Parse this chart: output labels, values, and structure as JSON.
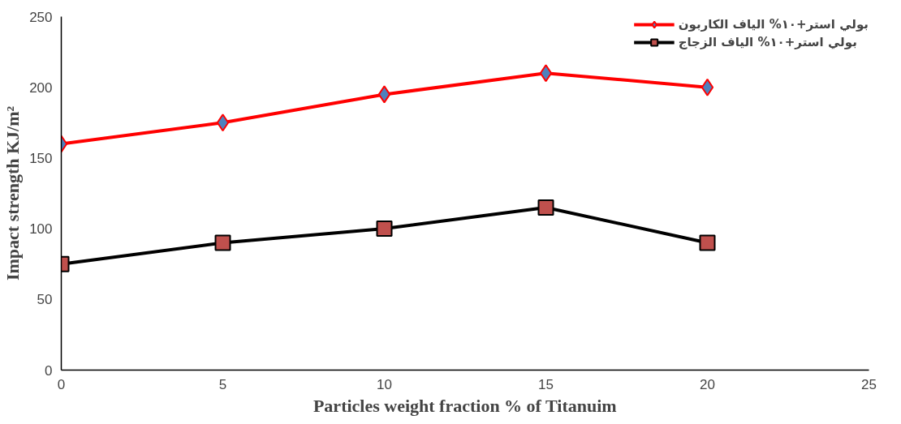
{
  "chart_data": {
    "type": "line",
    "xlabel": "Particles weight fraction % of Titanuim",
    "ylabel": "Impact strength KJ/m²",
    "x": [
      0,
      5,
      10,
      15,
      20
    ],
    "series": [
      {
        "name": "بولي استر+١٠% الياف الكاربون",
        "color": "#ff0000",
        "colors": [
          "#4f81bd",
          "#4f81bd",
          "#4f81bd",
          "#4f81bd",
          "#4f81bd"
        ],
        "marker": "diamond",
        "values": [
          160,
          175,
          195,
          210,
          200
        ]
      },
      {
        "name": "بولي استر+١٠% الياف الزجاج",
        "color": "#000000",
        "colors": [
          "#c0504d",
          "#c0504d",
          "#c0504d",
          "#c0504d",
          "#c0504d"
        ],
        "marker": "square",
        "values": [
          75,
          90,
          100,
          115,
          90
        ]
      }
    ],
    "xlim": [
      0,
      25
    ],
    "xticks": [
      0,
      5,
      10,
      15,
      20,
      25
    ],
    "ylim": [
      0,
      250
    ],
    "yticks": [
      0,
      50,
      100,
      150,
      200,
      250
    ],
    "grid": false,
    "legend": "top right"
  }
}
